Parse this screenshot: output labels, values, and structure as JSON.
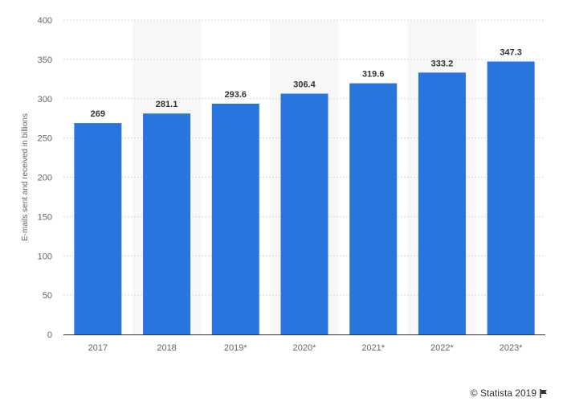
{
  "chart_data": {
    "type": "bar",
    "categories": [
      "2017",
      "2018",
      "2019*",
      "2020*",
      "2021*",
      "2022*",
      "2023*"
    ],
    "values": [
      269,
      281.1,
      293.6,
      306.4,
      319.6,
      333.2,
      347.3
    ],
    "value_labels": [
      "269",
      "281.1",
      "293.6",
      "306.4",
      "319.6",
      "333.2",
      "347.3"
    ],
    "title": "",
    "xlabel": "",
    "ylabel": "E-mails sent and received in billions",
    "ylim": [
      0,
      400
    ],
    "yticks": [
      0,
      50,
      100,
      150,
      200,
      250,
      300,
      350,
      400
    ],
    "grid": true,
    "bar_color": "#2876dd",
    "alt_band_color": "#f7f7f7"
  },
  "footer": {
    "credit": "© Statista 2019",
    "flag_icon": "flag-icon"
  }
}
